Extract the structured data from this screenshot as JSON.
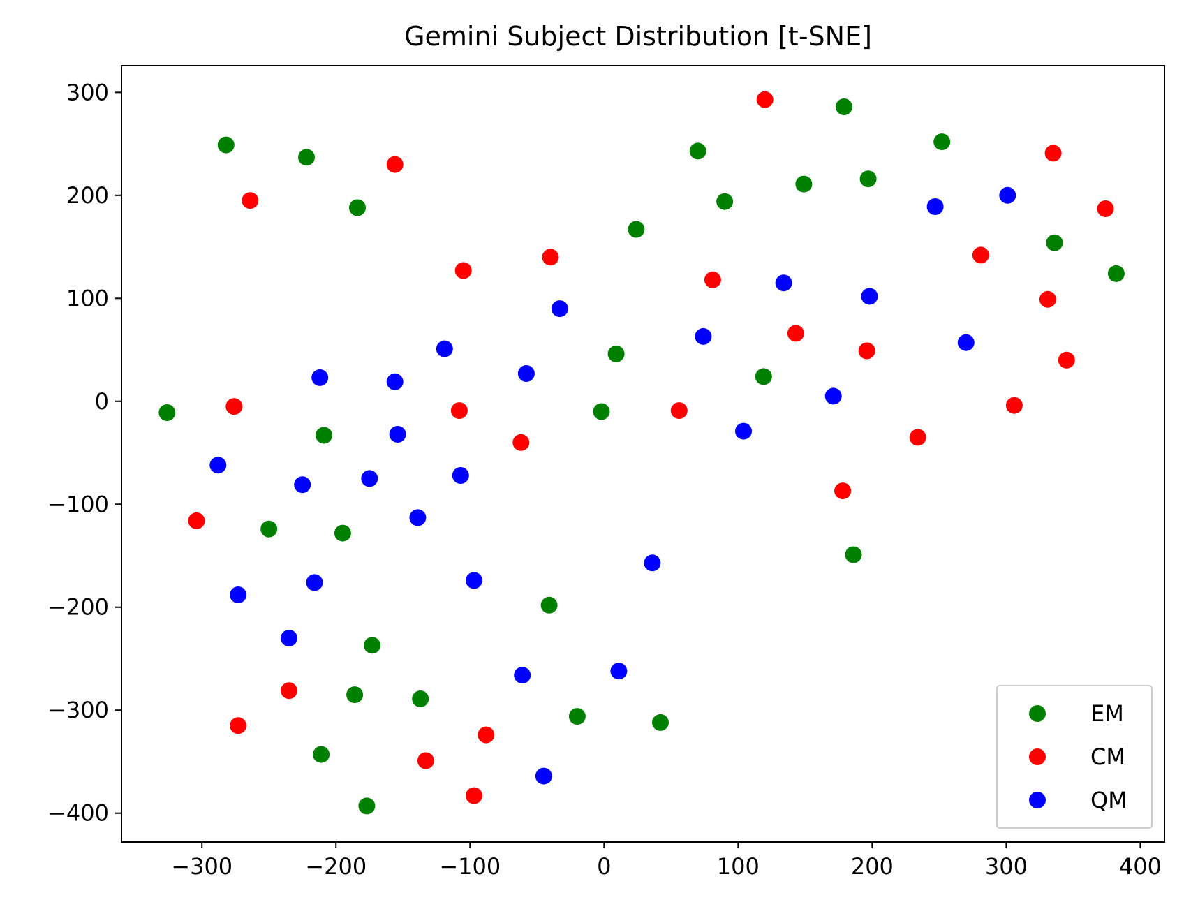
{
  "chart_data": {
    "type": "scatter",
    "title": "Gemini Subject Distribution [t-SNE]",
    "xlabel": "",
    "ylabel": "",
    "xlim": [
      -360,
      418
    ],
    "ylim": [
      -428,
      326
    ],
    "xticks": [
      -300,
      -200,
      -100,
      0,
      100,
      200,
      300,
      400
    ],
    "yticks": [
      -400,
      -300,
      -200,
      -100,
      0,
      100,
      200,
      300
    ],
    "xtick_labels": [
      "−300",
      "−200",
      "−100",
      "0",
      "100",
      "200",
      "300",
      "400"
    ],
    "ytick_labels": [
      "−400",
      "−300",
      "−200",
      "−100",
      "0",
      "100",
      "200",
      "300"
    ],
    "grid": false,
    "legend_position": "lower-right",
    "series": [
      {
        "name": "EM",
        "color": "#008000",
        "points": [
          [
            -282,
            249
          ],
          [
            -222,
            237
          ],
          [
            -184,
            188
          ],
          [
            -326,
            -11
          ],
          [
            -209,
            -33
          ],
          [
            -250,
            -124
          ],
          [
            -195,
            -128
          ],
          [
            -173,
            -237
          ],
          [
            -186,
            -285
          ],
          [
            -137,
            -289
          ],
          [
            -211,
            -343
          ],
          [
            -177,
            -393
          ],
          [
            -41,
            -198
          ],
          [
            -20,
            -306
          ],
          [
            42,
            -312
          ],
          [
            -2,
            -10
          ],
          [
            9,
            46
          ],
          [
            24,
            167
          ],
          [
            70,
            243
          ],
          [
            90,
            194
          ],
          [
            119,
            24
          ],
          [
            149,
            211
          ],
          [
            179,
            286
          ],
          [
            197,
            216
          ],
          [
            252,
            252
          ],
          [
            186,
            -149
          ],
          [
            336,
            154
          ],
          [
            382,
            124
          ]
        ]
      },
      {
        "name": "CM",
        "color": "#ff0000",
        "points": [
          [
            -264,
            195
          ],
          [
            -156,
            230
          ],
          [
            -105,
            127
          ],
          [
            -40,
            140
          ],
          [
            -276,
            -5
          ],
          [
            -304,
            -116
          ],
          [
            -108,
            -9
          ],
          [
            -62,
            -40
          ],
          [
            -235,
            -281
          ],
          [
            -273,
            -315
          ],
          [
            -133,
            -349
          ],
          [
            -88,
            -324
          ],
          [
            -97,
            -383
          ],
          [
            56,
            -9
          ],
          [
            81,
            118
          ],
          [
            120,
            293
          ],
          [
            143,
            66
          ],
          [
            196,
            49
          ],
          [
            178,
            -87
          ],
          [
            234,
            -35
          ],
          [
            281,
            142
          ],
          [
            306,
            -4
          ],
          [
            331,
            99
          ],
          [
            335,
            241
          ],
          [
            345,
            40
          ],
          [
            374,
            187
          ]
        ]
      },
      {
        "name": "QM",
        "color": "#0000ff",
        "points": [
          [
            -288,
            -62
          ],
          [
            -212,
            23
          ],
          [
            -225,
            -81
          ],
          [
            -156,
            19
          ],
          [
            -154,
            -32
          ],
          [
            -175,
            -75
          ],
          [
            -139,
            -113
          ],
          [
            -119,
            51
          ],
          [
            -107,
            -72
          ],
          [
            -97,
            -174
          ],
          [
            -58,
            27
          ],
          [
            -33,
            90
          ],
          [
            -61,
            -266
          ],
          [
            -45,
            -364
          ],
          [
            11,
            -262
          ],
          [
            36,
            -157
          ],
          [
            74,
            63
          ],
          [
            104,
            -29
          ],
          [
            134,
            115
          ],
          [
            171,
            5
          ],
          [
            198,
            102
          ],
          [
            247,
            189
          ],
          [
            270,
            57
          ],
          [
            301,
            200
          ],
          [
            -273,
            -188
          ],
          [
            -216,
            -176
          ],
          [
            -235,
            -230
          ]
        ]
      }
    ]
  }
}
